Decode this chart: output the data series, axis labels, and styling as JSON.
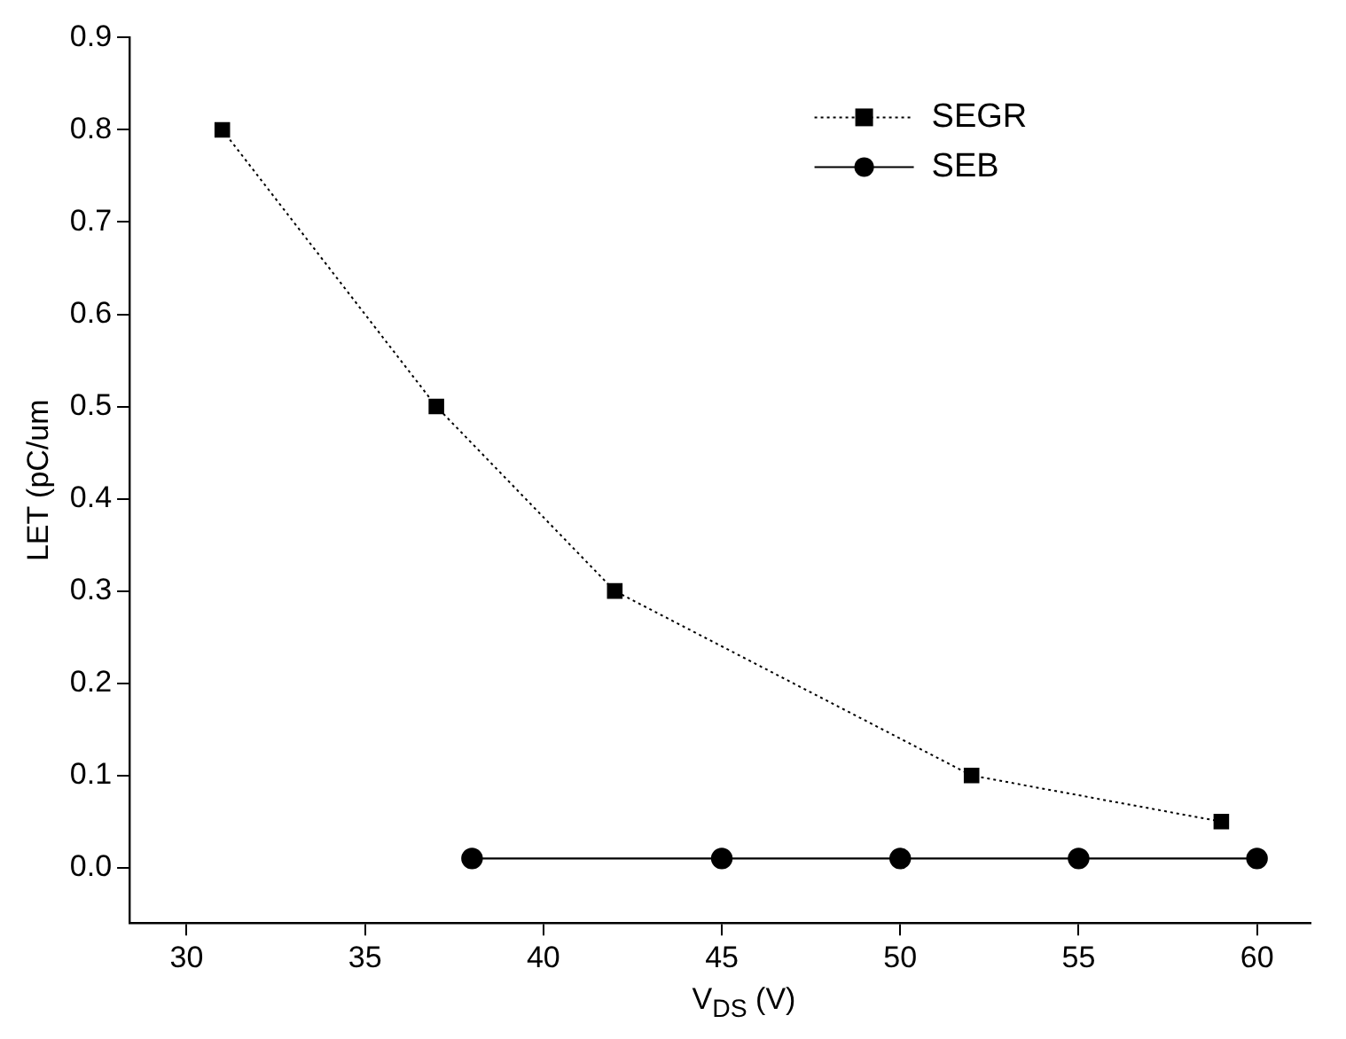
{
  "chart_data": {
    "type": "line",
    "xlabel": "V$_{DS}$ (V)",
    "ylabel": "LET (pC/um",
    "xlim": [
      28.4,
      61.5
    ],
    "xticks": [
      30,
      35,
      40,
      45,
      50,
      55,
      60
    ],
    "ylim": [
      -0.06,
      0.9
    ],
    "yticks": [
      {
        "value": 0,
        "label": "0.0"
      },
      0.1,
      0.2,
      0.3,
      0.4,
      0.5,
      0.6,
      0.7,
      0.8,
      0.9
    ],
    "grid": false,
    "legend": "top right",
    "series": [
      {
        "name": "SEGR",
        "color": "#000000",
        "marker": "square",
        "line_style": "dotted",
        "x": [
          31,
          37,
          42,
          52,
          59
        ],
        "values": [
          0.8,
          0.5,
          0.3,
          0.1,
          0.05
        ]
      },
      {
        "name": "SEB",
        "color": "#000000",
        "marker": "circle",
        "line_style": "solid",
        "x": [
          38,
          45,
          50,
          55,
          60
        ],
        "values": [
          0.01,
          0.01,
          0.01,
          0.01,
          0.01
        ]
      }
    ]
  }
}
